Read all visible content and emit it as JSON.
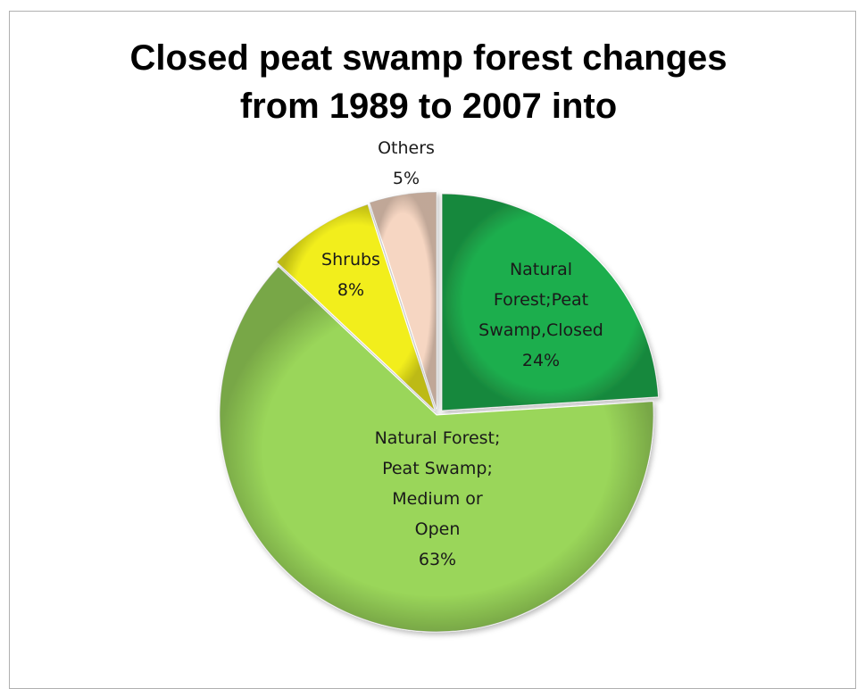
{
  "chart_data": {
    "type": "pie",
    "title": [
      "Closed peat swamp forest changes",
      "from 1989 to 2007 into"
    ],
    "legend": "none",
    "slices": [
      {
        "label": [
          "Natural",
          "Forest;Peat",
          "Swamp,Closed"
        ],
        "value": 24,
        "display": "24%",
        "color": "#1fae4e"
      },
      {
        "label": [
          "Natural Forest;",
          "Peat Swamp;",
          "Medium or",
          "Open"
        ],
        "value": 63,
        "display": "63%",
        "color": "#9ad65a"
      },
      {
        "label": [
          "Shrubs"
        ],
        "value": 8,
        "display": "8%",
        "color": "#f2ee1c"
      },
      {
        "label": [
          "Others"
        ],
        "value": 5,
        "display": "5%",
        "color": "#f6d6c2"
      }
    ]
  }
}
